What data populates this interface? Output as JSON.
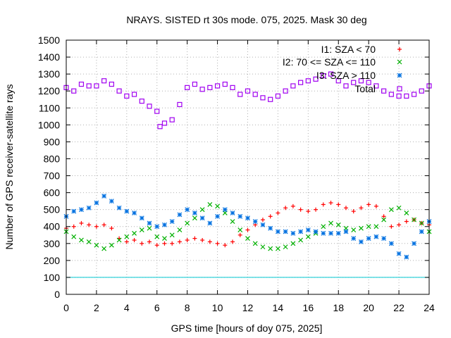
{
  "chart_data": {
    "type": "scatter",
    "title": "NRAYS. SISTED rt 30s mode. 075, 2025. Mask 30 deg",
    "xlabel": "GPS time [hours of doy 075, 2025]",
    "ylabel": "Number of GPS receiver-satellite rays",
    "xlim": [
      0,
      24
    ],
    "ylim": [
      0,
      1500
    ],
    "xticks": [
      0,
      2,
      4,
      6,
      8,
      10,
      12,
      14,
      16,
      18,
      20,
      22,
      24
    ],
    "yticks": [
      0,
      100,
      200,
      300,
      400,
      500,
      600,
      700,
      800,
      900,
      1000,
      1100,
      1200,
      1300,
      1400,
      1500
    ],
    "grid": true,
    "legend_position": "top-right",
    "threshold": {
      "y": 100,
      "color": "#00c8d0"
    },
    "series": [
      {
        "name": "I1: SZA < 70",
        "color": "#ff0000",
        "marker": "plus",
        "x": [
          0,
          0.5,
          1,
          1.5,
          2,
          2.5,
          3,
          3.5,
          4,
          4.5,
          5,
          5.5,
          6,
          6.5,
          7,
          7.5,
          8,
          8.5,
          9,
          9.5,
          10,
          10.5,
          11,
          11.5,
          12,
          12.5,
          13,
          13.5,
          14,
          14.5,
          15,
          15.5,
          16,
          16.5,
          17,
          17.5,
          18,
          18.5,
          19,
          19.5,
          20,
          20.5,
          21,
          21.5,
          22,
          22.5,
          23,
          23.5,
          24
        ],
        "y": [
          390,
          400,
          420,
          410,
          400,
          410,
          390,
          330,
          310,
          320,
          300,
          310,
          290,
          300,
          300,
          310,
          320,
          330,
          320,
          310,
          300,
          290,
          310,
          350,
          380,
          410,
          440,
          460,
          480,
          510,
          520,
          500,
          490,
          500,
          530,
          540,
          530,
          510,
          490,
          510,
          530,
          520,
          460,
          400,
          410,
          430,
          440,
          420,
          410
        ]
      },
      {
        "name": "I2: 70 <= SZA <= 110",
        "color": "#00b000",
        "marker": "cross",
        "x": [
          0,
          0.5,
          1,
          1.5,
          2,
          2.5,
          3,
          3.5,
          4,
          4.5,
          5,
          5.5,
          6,
          6.5,
          7,
          7.5,
          8,
          8.5,
          9,
          9.5,
          10,
          10.5,
          11,
          11.5,
          12,
          12.5,
          13,
          13.5,
          14,
          14.5,
          15,
          15.5,
          16,
          16.5,
          17,
          17.5,
          18,
          18.5,
          19,
          19.5,
          20,
          20.5,
          21,
          21.5,
          22,
          22.5,
          23,
          23.5,
          24
        ],
        "y": [
          370,
          340,
          320,
          310,
          290,
          270,
          290,
          320,
          340,
          360,
          380,
          390,
          340,
          330,
          350,
          380,
          420,
          450,
          500,
          530,
          520,
          480,
          430,
          380,
          330,
          300,
          280,
          270,
          270,
          280,
          300,
          320,
          340,
          360,
          400,
          420,
          410,
          390,
          380,
          390,
          400,
          400,
          440,
          500,
          510,
          480,
          440,
          420,
          370
        ]
      },
      {
        "name": "I3: SZA > 110",
        "color": "#0070e0",
        "marker": "star",
        "x": [
          0,
          0.5,
          1,
          1.5,
          2,
          2.5,
          3,
          3.5,
          4,
          4.5,
          5,
          5.5,
          6,
          6.5,
          7,
          7.5,
          8,
          8.5,
          9,
          9.5,
          10,
          10.5,
          11,
          11.5,
          12,
          12.5,
          13,
          13.5,
          14,
          14.5,
          15,
          15.5,
          16,
          16.5,
          17,
          17.5,
          18,
          18.5,
          19,
          19.5,
          20,
          20.5,
          21,
          21.5,
          22,
          22.5,
          23,
          23.5,
          24
        ],
        "y": [
          460,
          490,
          500,
          510,
          540,
          580,
          550,
          510,
          490,
          480,
          450,
          420,
          400,
          410,
          430,
          470,
          500,
          480,
          450,
          420,
          460,
          500,
          480,
          460,
          450,
          430,
          410,
          390,
          370,
          370,
          360,
          370,
          380,
          370,
          360,
          360,
          360,
          370,
          330,
          310,
          330,
          340,
          330,
          300,
          240,
          220,
          300,
          370,
          430
        ]
      },
      {
        "name": "Total",
        "color": "#a000f0",
        "marker": "square",
        "x": [
          0,
          0.5,
          1,
          1.5,
          2,
          2.5,
          3,
          3.5,
          4,
          4.5,
          5,
          5.5,
          6,
          6.2,
          6.5,
          7,
          7.5,
          8,
          8.5,
          9,
          9.5,
          10,
          10.5,
          11,
          11.5,
          12,
          12.5,
          13,
          13.5,
          14,
          14.5,
          15,
          15.5,
          16,
          16.5,
          17,
          17.5,
          18,
          18.5,
          19,
          19.5,
          20,
          20.5,
          21,
          21.5,
          22,
          22.5,
          23,
          23.5,
          24
        ],
        "y": [
          1220,
          1200,
          1240,
          1230,
          1230,
          1260,
          1240,
          1200,
          1170,
          1180,
          1140,
          1110,
          1080,
          990,
          1010,
          1030,
          1120,
          1220,
          1240,
          1210,
          1220,
          1230,
          1240,
          1220,
          1180,
          1200,
          1180,
          1160,
          1150,
          1170,
          1200,
          1230,
          1250,
          1260,
          1270,
          1290,
          1300,
          1260,
          1230,
          1250,
          1260,
          1250,
          1230,
          1200,
          1180,
          1170,
          1170,
          1180,
          1200,
          1230
        ]
      }
    ]
  }
}
